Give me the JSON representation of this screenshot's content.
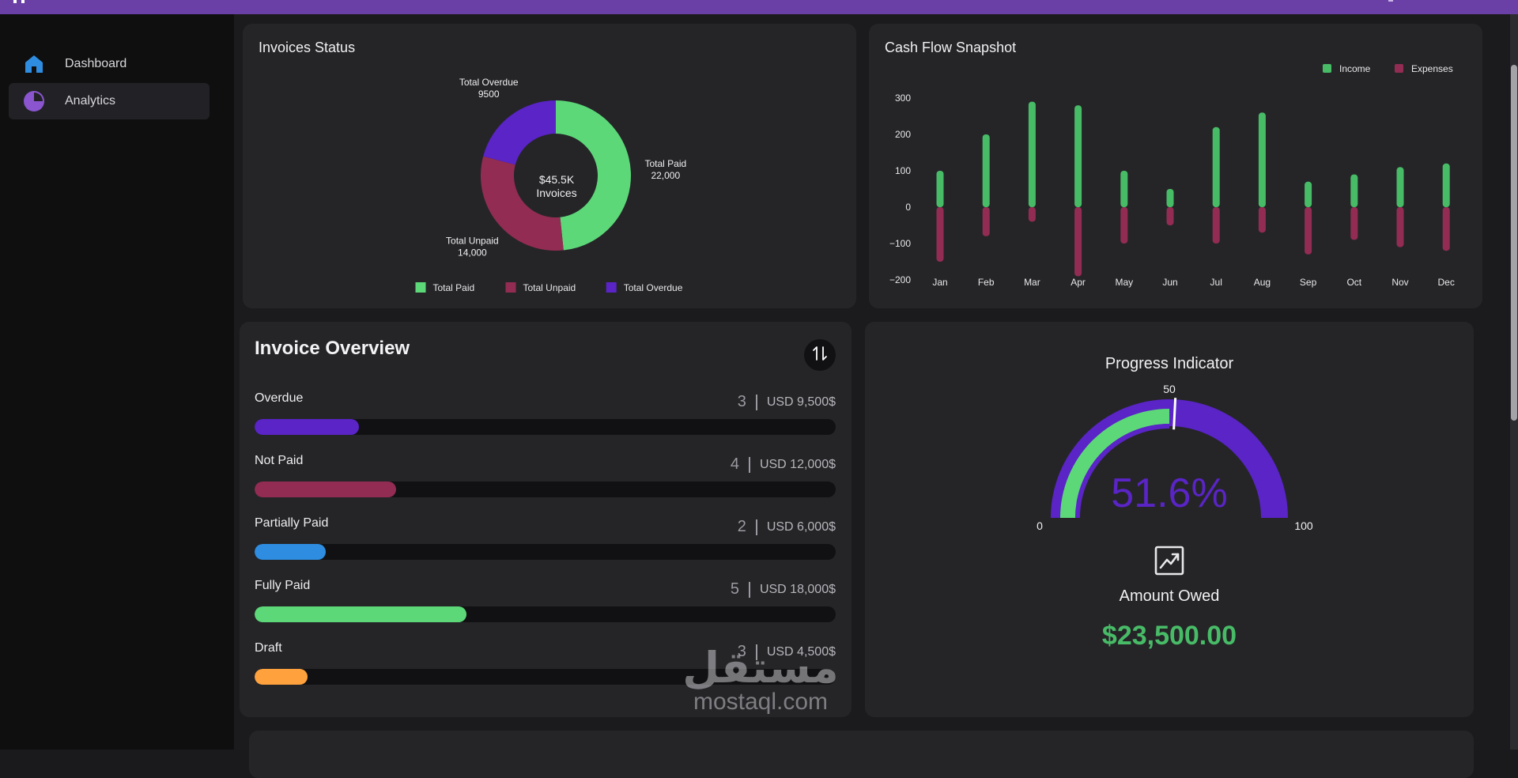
{
  "colors": {
    "paid": "#5dd879",
    "unpaid": "#922c52",
    "overdue": "#5a24c7",
    "partial": "#2e8de0",
    "draft": "#ffa23d",
    "accent_purple": "#6a3fa6"
  },
  "sidebar": {
    "items": [
      {
        "label": "Dashboard",
        "icon": "home-icon",
        "active": false
      },
      {
        "label": "Analytics",
        "icon": "pie-chart-icon",
        "active": true
      }
    ]
  },
  "invoices_status": {
    "title": "Invoices Status",
    "center_line1": "$45.5K",
    "center_line2": "Invoices"
  },
  "cash_flow": {
    "title": "Cash Flow Snapshot"
  },
  "overview": {
    "title": "Invoice Overview",
    "swap_icon": "swap-vertical-icon",
    "rows": [
      {
        "label": "Overdue",
        "count": "3",
        "amount": "USD 9,500$",
        "fraction": 0.18,
        "color": "#5a24c7"
      },
      {
        "label": "Not Paid",
        "count": "4",
        "amount": "USD 12,000$",
        "fraction": 0.243,
        "color": "#922c52"
      },
      {
        "label": "Partially Paid",
        "count": "2",
        "amount": "USD 6,000$",
        "fraction": 0.122,
        "color": "#2e8de0"
      },
      {
        "label": "Fully Paid",
        "count": "5",
        "amount": "USD 18,000$",
        "fraction": 0.365,
        "color": "#5dd879"
      },
      {
        "label": "Draft",
        "count": "3",
        "amount": "USD 4,500$",
        "fraction": 0.091,
        "color": "#ffa23d"
      }
    ]
  },
  "progress": {
    "title": "Progress Indicator",
    "value_text": "51.6%",
    "value": 51.6,
    "target": 50,
    "min_label": "0",
    "mid_label": "50",
    "max_label": "100",
    "owed_icon": "trending-up-icon",
    "owed_label": "Amount Owed",
    "owed_value": "$23,500.00"
  },
  "watermark": {
    "arabic": "مستقل",
    "latin": "mostaql.com"
  },
  "chart_data": [
    {
      "type": "pie",
      "title": "Invoices Status",
      "categories": [
        "Total Paid",
        "Total Unpaid",
        "Total Overdue"
      ],
      "values": [
        22000,
        14000,
        9500
      ],
      "value_labels": [
        "22,000",
        "14,000",
        "9500"
      ],
      "colors": [
        "#5dd879",
        "#922c52",
        "#5a24c7"
      ],
      "donut": true,
      "legend": "bottom"
    },
    {
      "type": "bar",
      "title": "Cash Flow Snapshot",
      "categories": [
        "Jan",
        "Feb",
        "Mar",
        "Apr",
        "May",
        "Jun",
        "Jul",
        "Aug",
        "Sep",
        "Oct",
        "Nov",
        "Dec"
      ],
      "series": [
        {
          "name": "Income",
          "color": "#48bb67",
          "values": [
            100,
            200,
            290,
            280,
            100,
            50,
            220,
            260,
            70,
            90,
            110,
            120
          ]
        },
        {
          "name": "Expenses",
          "color": "#922c52",
          "values": [
            -150,
            -80,
            -40,
            -190,
            -100,
            -50,
            -100,
            -70,
            -130,
            -90,
            -110,
            -120
          ]
        }
      ],
      "ylim": [
        -200,
        300
      ],
      "yticks": [
        300,
        200,
        100,
        0,
        -100,
        -200
      ],
      "legend": "top-right"
    }
  ]
}
